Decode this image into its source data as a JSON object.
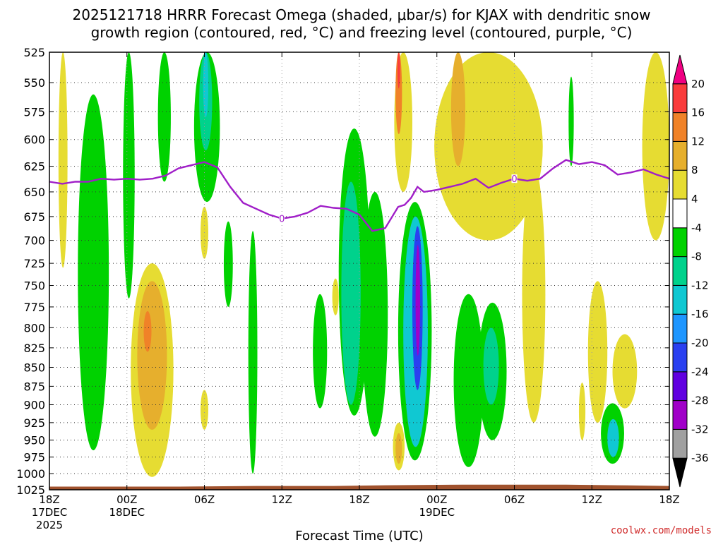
{
  "title_line1": "2025121718 HRRR Forecast Omega (shaded, μbar/s) for KJAX with dendritic snow",
  "title_line2": "growth region (contoured, red, °C) and freezing level (contoured, purple, °C)",
  "xlabel": "Forecast Time (UTC)",
  "credit": "coolwx.com/models",
  "chart_data": {
    "type": "heatmap",
    "xlabel": "Forecast Time (UTC)",
    "x_ticks": [
      {
        "hour": 0,
        "label": "18Z",
        "date": "17DEC",
        "year": "2025"
      },
      {
        "hour": 6,
        "label": "00Z",
        "date": "18DEC",
        "year": ""
      },
      {
        "hour": 12,
        "label": "06Z",
        "date": "",
        "year": ""
      },
      {
        "hour": 18,
        "label": "12Z",
        "date": "",
        "year": ""
      },
      {
        "hour": 24,
        "label": "18Z",
        "date": "",
        "year": ""
      },
      {
        "hour": 30,
        "label": "00Z",
        "date": "19DEC",
        "year": ""
      },
      {
        "hour": 36,
        "label": "06Z",
        "date": "",
        "year": ""
      },
      {
        "hour": 42,
        "label": "12Z",
        "date": "",
        "year": ""
      },
      {
        "hour": 48,
        "label": "18Z",
        "date": "",
        "year": ""
      }
    ],
    "y_ticks": [
      525,
      550,
      575,
      600,
      625,
      650,
      675,
      700,
      725,
      750,
      775,
      800,
      825,
      850,
      875,
      900,
      925,
      950,
      975,
      1000,
      1025
    ],
    "xlim": [
      0,
      48
    ],
    "ylim": [
      525,
      1025
    ],
    "y_scale": "log-pressure",
    "grid": true,
    "colorbar": {
      "levels": [
        -36,
        -32,
        -28,
        -24,
        -20,
        -16,
        -12,
        -8,
        -4,
        4,
        8,
        12,
        16,
        20
      ],
      "labels": [
        "-36",
        "-32",
        "-28",
        "-24",
        "-20",
        "-16",
        "-12",
        "-8",
        "-4",
        "4",
        "8",
        "12",
        "16",
        "20"
      ],
      "colors": [
        "#000000",
        "#a0a0a0",
        "#a000c8",
        "#6000e0",
        "#2a40f0",
        "#1e96ff",
        "#10c8d2",
        "#00d28c",
        "#00d200",
        "#ffffff",
        "#e6dc32",
        "#e6af2d",
        "#f08228",
        "#fa3c3c",
        "#f00082"
      ]
    },
    "freezing_level": {
      "color": "#a01ec8",
      "contour_label": "0",
      "label_at_hours": [
        18,
        36
      ],
      "points": [
        [
          0,
          640
        ],
        [
          1,
          642
        ],
        [
          2,
          640
        ],
        [
          3,
          640
        ],
        [
          4,
          637
        ],
        [
          5,
          638
        ],
        [
          6,
          637
        ],
        [
          7,
          638
        ],
        [
          8,
          637
        ],
        [
          9,
          634
        ],
        [
          10,
          627
        ],
        [
          11,
          624
        ],
        [
          12,
          621
        ],
        [
          13,
          626
        ],
        [
          14,
          645
        ],
        [
          15,
          661
        ],
        [
          16,
          667
        ],
        [
          17,
          673
        ],
        [
          18,
          677
        ],
        [
          19,
          675
        ],
        [
          20,
          671
        ],
        [
          21,
          664
        ],
        [
          22,
          666
        ],
        [
          23,
          667
        ],
        [
          24,
          673
        ],
        [
          25,
          690
        ],
        [
          26,
          687
        ],
        [
          27,
          665
        ],
        [
          27.5,
          663
        ],
        [
          28,
          656
        ],
        [
          28.5,
          645
        ],
        [
          29,
          650
        ],
        [
          30,
          648
        ],
        [
          31,
          645
        ],
        [
          32,
          642
        ],
        [
          33,
          637
        ],
        [
          34,
          646
        ],
        [
          35,
          641
        ],
        [
          36,
          637
        ],
        [
          37,
          639
        ],
        [
          38,
          637
        ],
        [
          39,
          627
        ],
        [
          40,
          619
        ],
        [
          41,
          623
        ],
        [
          42,
          621
        ],
        [
          43,
          624
        ],
        [
          44,
          633
        ],
        [
          45,
          631
        ],
        [
          46,
          628
        ],
        [
          47,
          633
        ],
        [
          48,
          637
        ]
      ]
    },
    "omega_regions": [
      {
        "value": -6,
        "x": [
          2.2,
          4.6
        ],
        "p": [
          560,
          965
        ]
      },
      {
        "value": -6,
        "x": [
          5.7,
          6.6
        ],
        "p": [
          525,
          765
        ]
      },
      {
        "value": -6,
        "x": [
          8.4,
          9.4
        ],
        "p": [
          525,
          640
        ]
      },
      {
        "value": -6,
        "x": [
          11.2,
          13.2
        ],
        "p": [
          525,
          660
        ]
      },
      {
        "value": -10,
        "x": [
          11.6,
          12.6
        ],
        "p": [
          525,
          610
        ]
      },
      {
        "value": -14,
        "x": [
          11.9,
          12.3
        ],
        "p": [
          525,
          580
        ]
      },
      {
        "value": -6,
        "x": [
          22.4,
          24.8
        ],
        "p": [
          590,
          915
        ]
      },
      {
        "value": -10,
        "x": [
          22.6,
          24.1
        ],
        "p": [
          640,
          900
        ]
      },
      {
        "value": -6,
        "x": [
          24.2,
          26.2
        ],
        "p": [
          650,
          945
        ]
      },
      {
        "value": -6,
        "x": [
          27,
          29.6
        ],
        "p": [
          660,
          980
        ]
      },
      {
        "value": -12,
        "x": [
          27.4,
          29.3
        ],
        "p": [
          675,
          960
        ]
      },
      {
        "value": -20,
        "x": [
          28.1,
          28.9
        ],
        "p": [
          685,
          880
        ]
      },
      {
        "value": -28,
        "x": [
          28.35,
          28.7
        ],
        "p": [
          705,
          835
        ]
      },
      {
        "value": -6,
        "x": [
          31.3,
          33.6
        ],
        "p": [
          760,
          990
        ]
      },
      {
        "value": -6,
        "x": [
          33.2,
          35.4
        ],
        "p": [
          770,
          950
        ]
      },
      {
        "value": -10,
        "x": [
          33.6,
          34.8
        ],
        "p": [
          800,
          900
        ]
      },
      {
        "value": -6,
        "x": [
          42.7,
          44.5
        ],
        "p": [
          898,
          985
        ]
      },
      {
        "value": -12,
        "x": [
          43.2,
          44.1
        ],
        "p": [
          920,
          975
        ]
      },
      {
        "value": -6,
        "x": [
          20.4,
          21.5
        ],
        "p": [
          760,
          905
        ]
      },
      {
        "value": -6,
        "x": [
          13.5,
          14.2
        ],
        "p": [
          680,
          775
        ]
      },
      {
        "value": -6,
        "x": [
          15.4,
          16.1
        ],
        "p": [
          690,
          1000
        ]
      },
      {
        "value": -6,
        "x": [
          40.2,
          40.6
        ],
        "p": [
          545,
          625
        ]
      }
    ],
    "positive_regions": [
      {
        "value": 6,
        "x": [
          0.7,
          1.4
        ],
        "p": [
          525,
          730
        ]
      },
      {
        "value": 6,
        "x": [
          6.3,
          9.6
        ],
        "p": [
          725,
          1005
        ]
      },
      {
        "value": 10,
        "x": [
          6.8,
          9.1
        ],
        "p": [
          745,
          935
        ]
      },
      {
        "value": 14,
        "x": [
          7.3,
          7.9
        ],
        "p": [
          780,
          830
        ]
      },
      {
        "value": 6,
        "x": [
          29.8,
          38.2
        ],
        "p": [
          525,
          700
        ]
      },
      {
        "value": 10,
        "x": [
          31.1,
          32.2
        ],
        "p": [
          525,
          625
        ]
      },
      {
        "value": 6,
        "x": [
          36.6,
          38.4
        ],
        "p": [
          625,
          925
        ]
      },
      {
        "value": 6,
        "x": [
          26.7,
          28.1
        ],
        "p": [
          525,
          650
        ]
      },
      {
        "value": 14,
        "x": [
          26.8,
          27.3
        ],
        "p": [
          525,
          595
        ]
      },
      {
        "value": 20,
        "x": [
          26.95,
          27.15
        ],
        "p": [
          525,
          555
        ]
      },
      {
        "value": 6,
        "x": [
          26.6,
          27.5
        ],
        "p": [
          925,
          995
        ]
      },
      {
        "value": 10,
        "x": [
          26.8,
          27.3
        ],
        "p": [
          940,
          985
        ]
      },
      {
        "value": 6,
        "x": [
          45.9,
          48
        ],
        "p": [
          525,
          700
        ]
      },
      {
        "value": 6,
        "x": [
          41.7,
          43.2
        ],
        "p": [
          745,
          925
        ]
      },
      {
        "value": 6,
        "x": [
          43.6,
          45.5
        ],
        "p": [
          808,
          905
        ]
      },
      {
        "value": 6,
        "x": [
          11.7,
          12.3
        ],
        "p": [
          665,
          720
        ]
      },
      {
        "value": 6,
        "x": [
          11.7,
          12.3
        ],
        "p": [
          880,
          935
        ]
      },
      {
        "value": 6,
        "x": [
          41.0,
          41.5
        ],
        "p": [
          870,
          950
        ]
      },
      {
        "value": 6,
        "x": [
          32.6,
          33.1
        ],
        "p": [
          905,
          955
        ]
      },
      {
        "value": 6,
        "x": [
          21.9,
          22.4
        ],
        "p": [
          742,
          785
        ]
      }
    ],
    "terrain_color": "#a0522d"
  }
}
